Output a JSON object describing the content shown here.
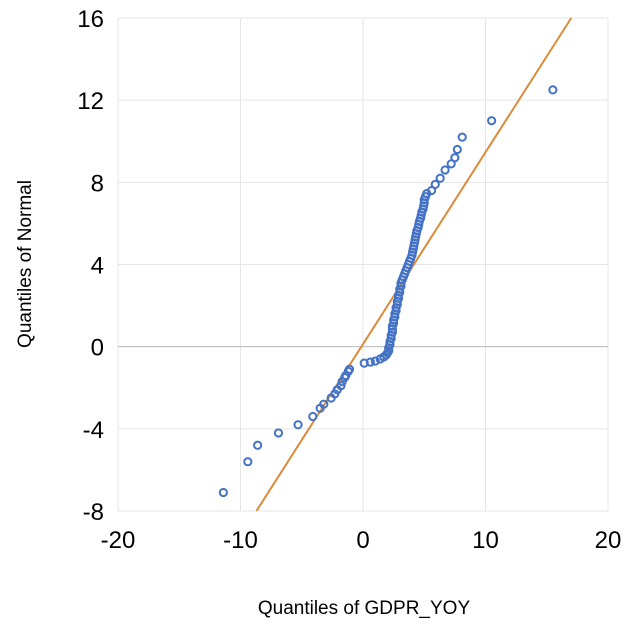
{
  "chart_data": {
    "type": "scatter",
    "title": "",
    "xlabel": "Quantiles of GDPR_YOY",
    "ylabel": "Quantiles of Normal",
    "xlim": [
      -20,
      20
    ],
    "ylim": [
      -8,
      16
    ],
    "xticks": [
      -20,
      -10,
      0,
      10,
      20
    ],
    "yticks": [
      -8,
      -4,
      0,
      4,
      8,
      12,
      16
    ],
    "grid": true,
    "legend": "none",
    "colors": {
      "points": "#4472C4",
      "reference_line": "#D98B3A",
      "grid": "#E5E5E5",
      "zero_line": "#BFBFBF"
    },
    "reference_line": {
      "points": [
        [
          -8.7,
          -8
        ],
        [
          17,
          16
        ]
      ]
    },
    "series": [
      {
        "values": [
          [
            -11.4,
            -7.1
          ],
          [
            -9.4,
            -5.6
          ],
          [
            -8.6,
            -4.8
          ],
          [
            -6.9,
            -4.2
          ],
          [
            -5.3,
            -3.8
          ],
          [
            -4.1,
            -3.4
          ],
          [
            -3.5,
            -3.0
          ],
          [
            -3.2,
            -2.8
          ],
          [
            -2.6,
            -2.5
          ],
          [
            -2.3,
            -2.3
          ],
          [
            -2.1,
            -2.1
          ],
          [
            -1.8,
            -1.9
          ],
          [
            -1.7,
            -1.7
          ],
          [
            -1.5,
            -1.5
          ],
          [
            -1.4,
            -1.4
          ],
          [
            -1.2,
            -1.2
          ],
          [
            -1.1,
            -1.1
          ],
          [
            0.1,
            -0.8
          ],
          [
            0.6,
            -0.75
          ],
          [
            1.0,
            -0.7
          ],
          [
            1.4,
            -0.6
          ],
          [
            1.7,
            -0.5
          ],
          [
            1.9,
            -0.4
          ],
          [
            2.0,
            -0.3
          ],
          [
            2.1,
            -0.2
          ],
          [
            2.1,
            -0.05
          ],
          [
            2.2,
            0.1
          ],
          [
            2.2,
            0.25
          ],
          [
            2.3,
            0.4
          ],
          [
            2.3,
            0.55
          ],
          [
            2.4,
            0.7
          ],
          [
            2.4,
            0.85
          ],
          [
            2.4,
            1.0
          ],
          [
            2.5,
            1.15
          ],
          [
            2.5,
            1.3
          ],
          [
            2.6,
            1.45
          ],
          [
            2.6,
            1.6
          ],
          [
            2.7,
            1.75
          ],
          [
            2.7,
            1.9
          ],
          [
            2.8,
            2.05
          ],
          [
            2.8,
            2.2
          ],
          [
            2.9,
            2.35
          ],
          [
            2.9,
            2.5
          ],
          [
            3.0,
            2.65
          ],
          [
            3.0,
            2.8
          ],
          [
            3.1,
            2.95
          ],
          [
            3.1,
            3.1
          ],
          [
            3.2,
            3.25
          ],
          [
            3.3,
            3.4
          ],
          [
            3.4,
            3.55
          ],
          [
            3.5,
            3.7
          ],
          [
            3.6,
            3.85
          ],
          [
            3.7,
            4.0
          ],
          [
            3.8,
            4.15
          ],
          [
            3.9,
            4.3
          ],
          [
            4.0,
            4.45
          ],
          [
            4.05,
            4.6
          ],
          [
            4.1,
            4.75
          ],
          [
            4.15,
            4.9
          ],
          [
            4.2,
            5.05
          ],
          [
            4.25,
            5.2
          ],
          [
            4.3,
            5.35
          ],
          [
            4.35,
            5.5
          ],
          [
            4.4,
            5.65
          ],
          [
            4.5,
            5.8
          ],
          [
            4.55,
            5.95
          ],
          [
            4.6,
            6.1
          ],
          [
            4.7,
            6.25
          ],
          [
            4.75,
            6.4
          ],
          [
            4.8,
            6.55
          ],
          [
            4.9,
            6.7
          ],
          [
            4.95,
            6.85
          ],
          [
            5.0,
            7.0
          ],
          [
            5.0,
            7.15
          ],
          [
            5.1,
            7.3
          ],
          [
            5.2,
            7.45
          ],
          [
            5.6,
            7.6
          ],
          [
            5.9,
            7.9
          ],
          [
            6.3,
            8.2
          ],
          [
            6.7,
            8.6
          ],
          [
            7.2,
            8.9
          ],
          [
            7.5,
            9.2
          ],
          [
            7.7,
            9.6
          ],
          [
            8.1,
            10.2
          ],
          [
            10.5,
            11.0
          ],
          [
            15.5,
            12.5
          ]
        ]
      }
    ]
  }
}
